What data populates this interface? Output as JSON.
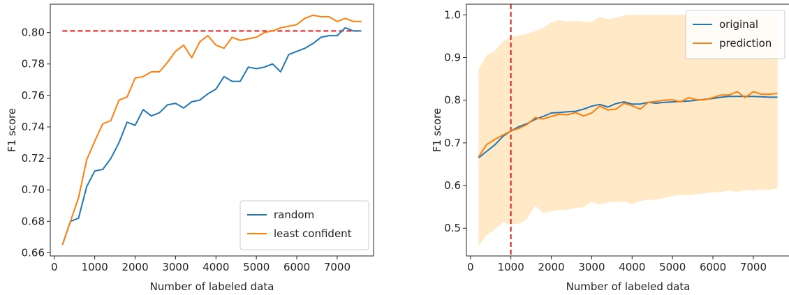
{
  "colors": {
    "blue": "#1f77b4",
    "orange": "#ff7f0e",
    "red": "#e41a1c",
    "band": "#ffe9c6",
    "axis": "#222222"
  },
  "chart_data": [
    {
      "type": "line",
      "xlabel": "Number of labeled data",
      "ylabel": "F1 score",
      "xlim": [
        -100,
        7900
      ],
      "ylim": [
        0.658,
        0.818
      ],
      "xticks": [
        0,
        1000,
        2000,
        3000,
        4000,
        5000,
        6000,
        7000
      ],
      "yticks": [
        0.66,
        0.68,
        0.7,
        0.72,
        0.74,
        0.76,
        0.78,
        0.8
      ],
      "ytick_labels": [
        "0.66",
        "0.68",
        "0.70",
        "0.72",
        "0.74",
        "0.76",
        "0.78",
        "0.80"
      ],
      "legend_position": "lower-right",
      "hline": {
        "y": 0.801,
        "x_from": 200,
        "x_to": 7600,
        "style": "dashed",
        "color": "red"
      },
      "x": [
        200,
        400,
        600,
        800,
        1000,
        1200,
        1400,
        1600,
        1800,
        2000,
        2200,
        2400,
        2600,
        2800,
        3000,
        3200,
        3400,
        3600,
        3800,
        4000,
        4200,
        4400,
        4600,
        4800,
        5000,
        5200,
        5400,
        5600,
        5800,
        6000,
        6200,
        6400,
        6600,
        6800,
        7000,
        7200,
        7400,
        7600
      ],
      "series": [
        {
          "name": "random",
          "color": "blue",
          "values": [
            0.665,
            0.68,
            0.682,
            0.702,
            0.712,
            0.713,
            0.72,
            0.73,
            0.743,
            0.741,
            0.751,
            0.747,
            0.749,
            0.754,
            0.755,
            0.752,
            0.756,
            0.757,
            0.761,
            0.764,
            0.772,
            0.769,
            0.769,
            0.778,
            0.777,
            0.778,
            0.78,
            0.775,
            0.786,
            0.788,
            0.79,
            0.793,
            0.797,
            0.798,
            0.798,
            0.803,
            0.801,
            0.801
          ]
        },
        {
          "name": "least confident",
          "color": "orange",
          "values": [
            0.665,
            0.68,
            0.695,
            0.719,
            0.731,
            0.742,
            0.744,
            0.757,
            0.759,
            0.771,
            0.772,
            0.775,
            0.775,
            0.781,
            0.788,
            0.792,
            0.784,
            0.794,
            0.798,
            0.792,
            0.79,
            0.797,
            0.795,
            0.796,
            0.797,
            0.8,
            0.801,
            0.803,
            0.804,
            0.805,
            0.809,
            0.811,
            0.81,
            0.81,
            0.807,
            0.809,
            0.807,
            0.807
          ]
        }
      ]
    },
    {
      "type": "line",
      "xlabel": "Number of labeled data",
      "ylabel": "F1 score",
      "xlim": [
        -100,
        7900
      ],
      "ylim": [
        0.435,
        1.025
      ],
      "xticks": [
        0,
        1000,
        2000,
        3000,
        4000,
        5000,
        6000,
        7000
      ],
      "yticks": [
        0.5,
        0.6,
        0.7,
        0.8,
        0.9,
        1.0
      ],
      "ytick_labels": [
        "0.5",
        "0.6",
        "0.7",
        "0.8",
        "0.9",
        "1.0"
      ],
      "legend_position": "upper-right",
      "vline": {
        "x": 1000,
        "style": "dashed",
        "color": "red"
      },
      "x": [
        200,
        400,
        600,
        800,
        1000,
        1200,
        1400,
        1600,
        1800,
        2000,
        2200,
        2400,
        2600,
        2800,
        3000,
        3200,
        3400,
        3600,
        3800,
        4000,
        4200,
        4400,
        4600,
        4800,
        5000,
        5200,
        5400,
        5600,
        5800,
        6000,
        6200,
        6400,
        6600,
        6800,
        7000,
        7200,
        7400,
        7600
      ],
      "band": {
        "upper": [
          0.872,
          0.905,
          0.915,
          0.937,
          0.948,
          0.952,
          0.955,
          0.962,
          0.97,
          0.982,
          0.988,
          0.984,
          0.986,
          0.984,
          0.984,
          0.995,
          0.99,
          0.993,
          0.999,
          1.0,
          1.0,
          1.0,
          1.0,
          1.0,
          1.0,
          1.0,
          1.0,
          1.0,
          1.0,
          1.0,
          1.0,
          1.0,
          1.0,
          1.0,
          1.0,
          1.0,
          1.0,
          1.0
        ],
        "lower": [
          0.458,
          0.484,
          0.497,
          0.513,
          0.508,
          0.511,
          0.521,
          0.553,
          0.536,
          0.54,
          0.543,
          0.543,
          0.548,
          0.549,
          0.562,
          0.555,
          0.56,
          0.561,
          0.563,
          0.556,
          0.564,
          0.566,
          0.568,
          0.571,
          0.575,
          0.578,
          0.577,
          0.58,
          0.582,
          0.584,
          0.585,
          0.588,
          0.585,
          0.59,
          0.588,
          0.591,
          0.59,
          0.593
        ]
      },
      "series": [
        {
          "name": "original",
          "color": "blue",
          "values": [
            0.665,
            0.68,
            0.695,
            0.715,
            0.728,
            0.738,
            0.745,
            0.755,
            0.762,
            0.77,
            0.771,
            0.773,
            0.774,
            0.779,
            0.786,
            0.79,
            0.784,
            0.792,
            0.796,
            0.791,
            0.791,
            0.795,
            0.793,
            0.795,
            0.796,
            0.797,
            0.798,
            0.8,
            0.802,
            0.804,
            0.807,
            0.809,
            0.809,
            0.809,
            0.809,
            0.808,
            0.807,
            0.807
          ]
        },
        {
          "name": "prediction",
          "color": "orange",
          "values": [
            0.667,
            0.696,
            0.708,
            0.718,
            0.728,
            0.734,
            0.743,
            0.759,
            0.756,
            0.762,
            0.767,
            0.766,
            0.771,
            0.763,
            0.77,
            0.786,
            0.777,
            0.779,
            0.793,
            0.787,
            0.779,
            0.795,
            0.797,
            0.8,
            0.801,
            0.796,
            0.806,
            0.801,
            0.801,
            0.806,
            0.812,
            0.812,
            0.82,
            0.806,
            0.82,
            0.814,
            0.814,
            0.816
          ]
        }
      ]
    }
  ]
}
